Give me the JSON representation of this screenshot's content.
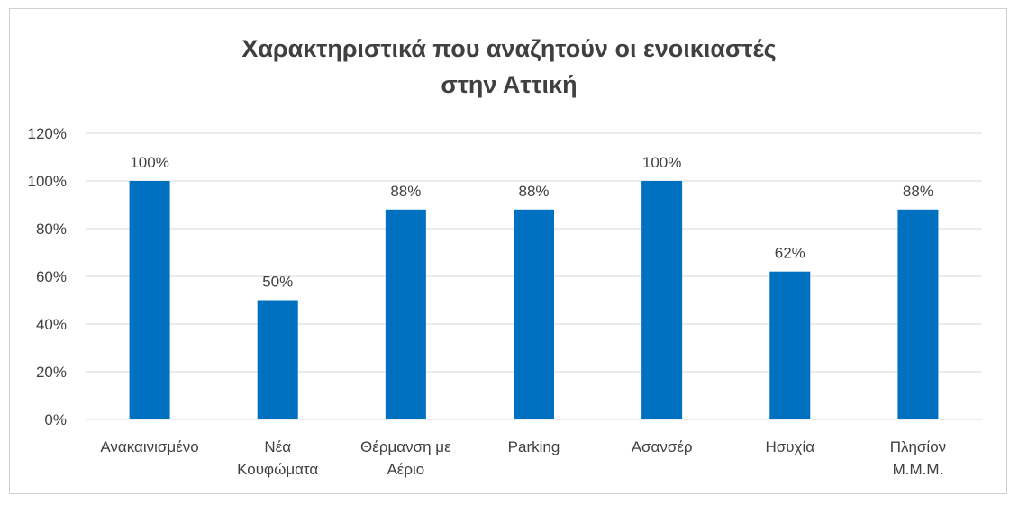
{
  "chart_data": {
    "type": "bar",
    "title": "Χαρακτηριστικά που αναζητούν οι ενοικιαστές στην Αττική",
    "title_lines": [
      "Χαρακτηριστικά που αναζητούν οι ενοικιαστές",
      "στην Αττική"
    ],
    "categories": [
      "Ανακαινισμένο",
      "Νέα Κουφώματα",
      "Θέρμανση με Αέριο",
      "Parking",
      "Ασανσέρ",
      "Ησυχία",
      "Πλησίον Μ.Μ.Μ."
    ],
    "category_lines": [
      [
        "Ανακαινισμένο"
      ],
      [
        "Νέα",
        "Κουφώματα"
      ],
      [
        "Θέρμανση με",
        "Αέριο"
      ],
      [
        "Parking"
      ],
      [
        "Ασανσέρ"
      ],
      [
        "Ησυχία"
      ],
      [
        "Πλησίον",
        "Μ.Μ.Μ."
      ]
    ],
    "values": [
      100,
      50,
      88,
      88,
      100,
      62,
      88
    ],
    "data_labels": [
      "100%",
      "50%",
      "88%",
      "88%",
      "100%",
      "62%",
      "88%"
    ],
    "y_ticks": [
      0,
      20,
      40,
      60,
      80,
      100,
      120
    ],
    "y_tick_labels": [
      "0%",
      "20%",
      "40%",
      "60%",
      "80%",
      "100%",
      "120%"
    ],
    "ylim": [
      0,
      120
    ],
    "grid": true,
    "legend": false,
    "bar_color": "#0070C0",
    "grid_color": "#d9d9d9",
    "text_color": "#404040"
  }
}
